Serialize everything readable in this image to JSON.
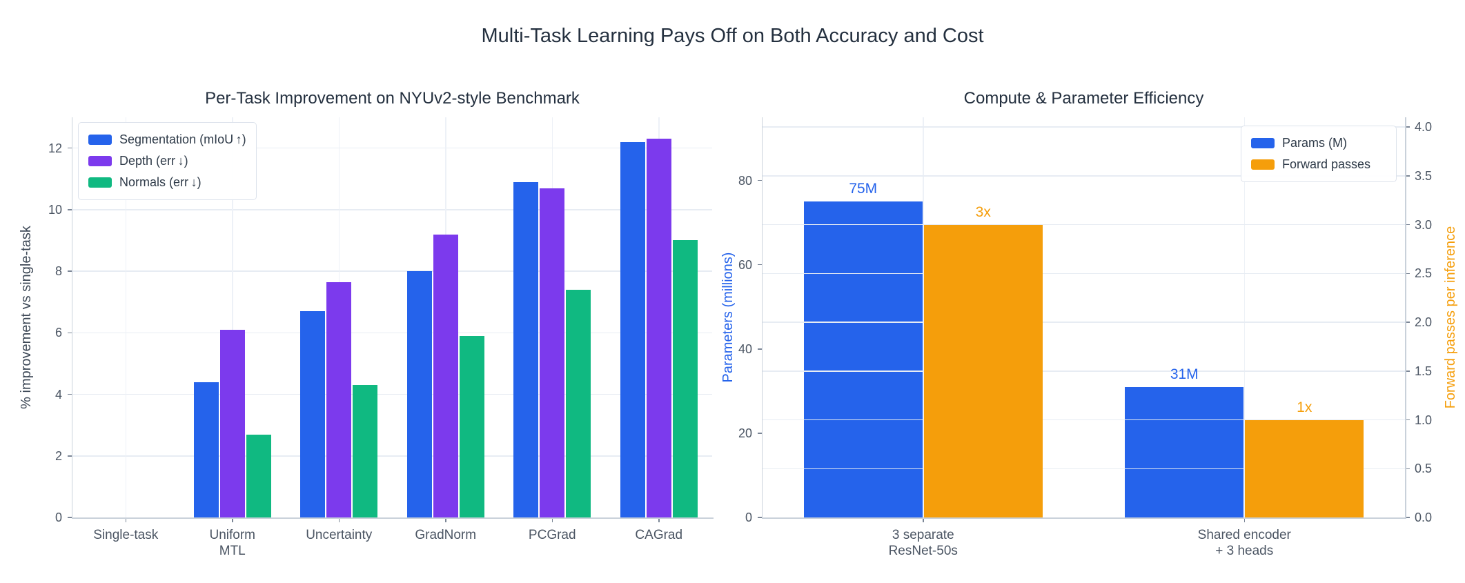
{
  "figure": {
    "title": "Multi-Task Learning Pays Off on Both Accuracy and Cost"
  },
  "colors": {
    "blue": "#2563eb",
    "purple": "#7c3aed",
    "green": "#10b981",
    "orange": "#f59e0b",
    "title_text": "#24303f",
    "tick_text": "#4b5563",
    "axis_title_text": "#3d4856",
    "gridline": "#e7ecf3",
    "axis_line": "#c9d1da",
    "background": "#ffffff",
    "legend_border": "#dde3ec"
  },
  "chart_data": [
    {
      "type": "bar",
      "title": "Per-Task Improvement on NYUv2-style Benchmark",
      "xlabel": "",
      "ylabel": "% improvement vs single-task",
      "categories": [
        "Single-task",
        "Uniform\nMTL",
        "Uncertainty",
        "GradNorm",
        "PCGrad",
        "CAGrad"
      ],
      "series": [
        {
          "name": "Segmentation (mIoU ↑)",
          "color_key": "blue",
          "values": [
            0,
            4.4,
            6.7,
            8.0,
            10.9,
            12.2
          ]
        },
        {
          "name": "Depth (err ↓)",
          "color_key": "purple",
          "values": [
            0,
            6.1,
            7.65,
            9.2,
            10.7,
            12.3
          ]
        },
        {
          "name": "Normals (err ↓)",
          "color_key": "green",
          "values": [
            0,
            2.7,
            4.3,
            5.9,
            7.4,
            9.0
          ]
        }
      ],
      "ylim": [
        0,
        13
      ],
      "yticks": [
        0,
        2,
        4,
        6,
        8,
        10,
        12
      ],
      "grid": true,
      "legend_position": "top-left"
    },
    {
      "type": "bar",
      "title": "Compute & Parameter Efficiency",
      "xlabel": "",
      "categories": [
        "3 separate\nResNet-50s",
        "Shared encoder\n+ 3 heads"
      ],
      "left_axis": {
        "label": "Parameters (millions)",
        "ticks": [
          0,
          20,
          40,
          60,
          80
        ],
        "lim": [
          0,
          95
        ]
      },
      "right_axis": {
        "label": "Forward passes per inference",
        "ticks": [
          "0.0",
          "0.5",
          "1.0",
          "1.5",
          "2.0",
          "2.5",
          "3.0",
          "3.5",
          "4.0"
        ],
        "lim": [
          0,
          4.1
        ]
      },
      "series": [
        {
          "name": "Params (M)",
          "axis": "left",
          "color_key": "blue",
          "values": [
            75,
            31
          ],
          "bar_labels": [
            "75M",
            "31M"
          ]
        },
        {
          "name": "Forward passes",
          "axis": "right",
          "color_key": "orange",
          "values": [
            3,
            1
          ],
          "bar_labels": [
            "3x",
            "1x"
          ]
        }
      ],
      "grid": true,
      "legend_position": "top-right"
    }
  ]
}
